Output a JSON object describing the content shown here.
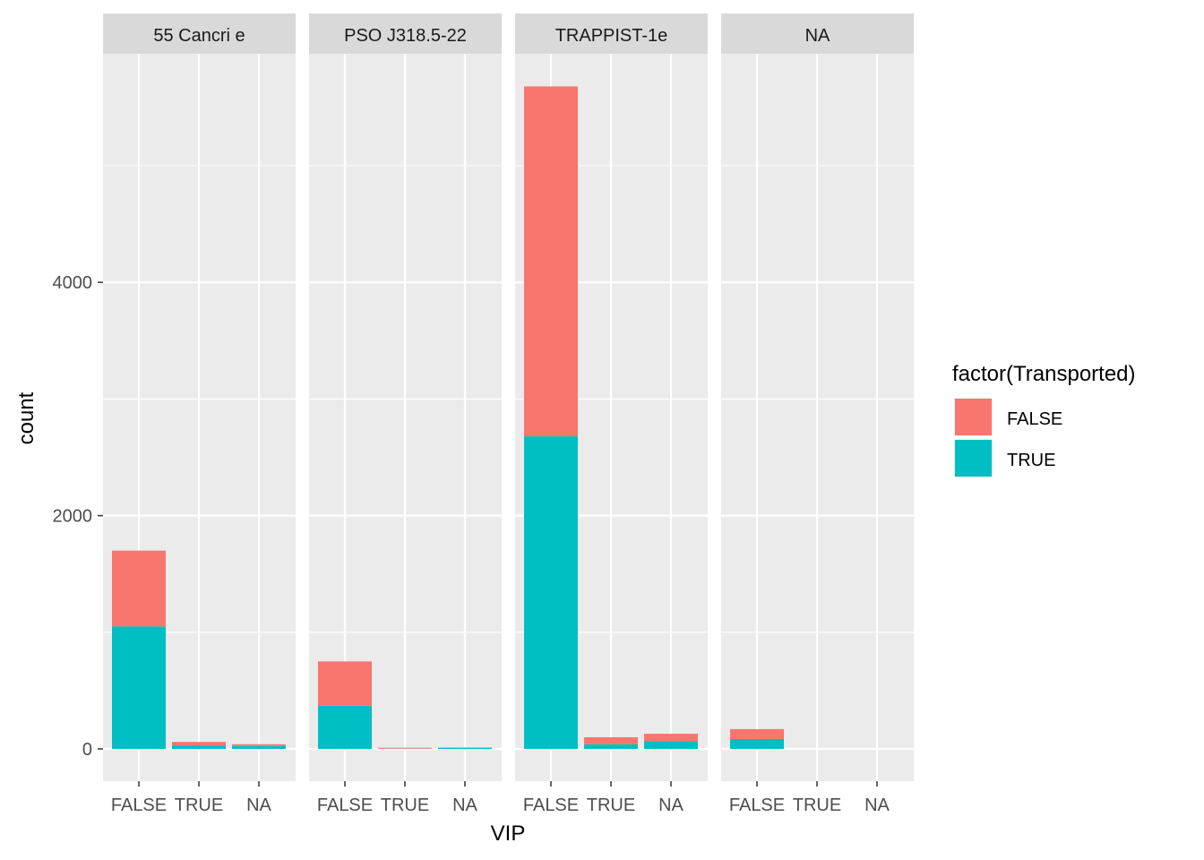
{
  "chart_data": {
    "type": "bar",
    "stacked": true,
    "facet_by": "HomePlanet",
    "xlabel": "VIP",
    "ylabel": "count",
    "categories": [
      "FALSE",
      "TRUE",
      "NA"
    ],
    "y_ticks": [
      0,
      2000,
      4000
    ],
    "ylim": [
      -260,
      5790
    ],
    "grid": true,
    "legend": {
      "title": "factor(Transported)",
      "position": "right",
      "items": [
        {
          "label": "FALSE",
          "color": "#F8766D"
        },
        {
          "label": "TRUE",
          "color": "#00BFC4"
        }
      ]
    },
    "panels": [
      {
        "title": "55 Cancri e",
        "series": [
          {
            "name": "FALSE",
            "values": [
              650,
              30,
              15
            ]
          },
          {
            "name": "TRUE",
            "values": [
              1050,
              30,
              25
            ]
          }
        ]
      },
      {
        "title": "PSO J318.5-22",
        "series": [
          {
            "name": "FALSE",
            "values": [
              380,
              8,
              4
            ]
          },
          {
            "name": "TRUE",
            "values": [
              370,
              2,
              8
            ]
          }
        ]
      },
      {
        "title": "TRAPPIST-1e",
        "series": [
          {
            "name": "FALSE",
            "values": [
              3000,
              60,
              65
            ]
          },
          {
            "name": "TRUE",
            "values": [
              2680,
              40,
              65
            ]
          }
        ]
      },
      {
        "title": "NA",
        "series": [
          {
            "name": "FALSE",
            "values": [
              85,
              0,
              0
            ]
          },
          {
            "name": "TRUE",
            "values": [
              85,
              0,
              0
            ]
          }
        ]
      }
    ]
  }
}
